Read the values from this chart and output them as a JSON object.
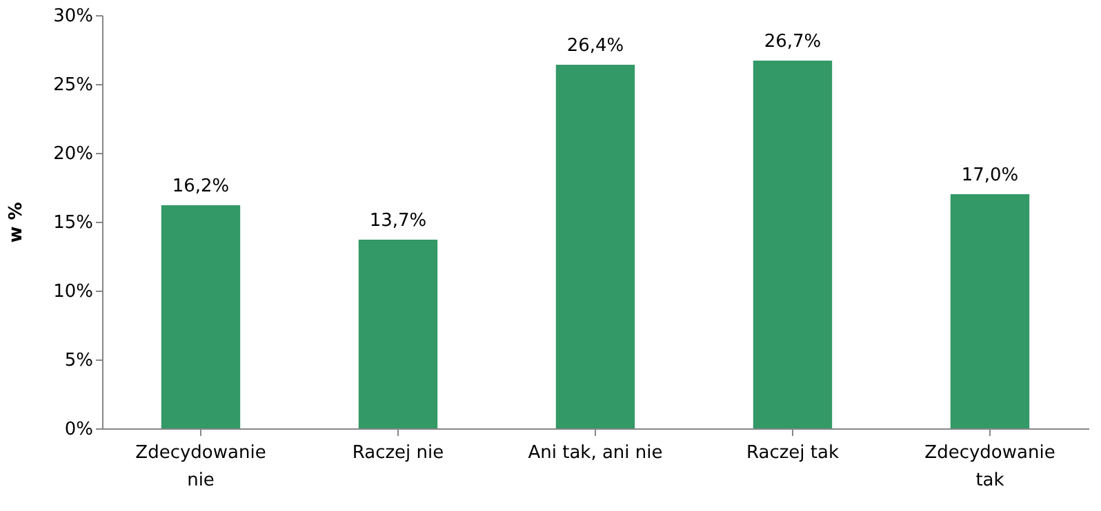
{
  "chart_data": {
    "type": "bar",
    "ylabel": "w %",
    "categories": [
      "Zdecydowanie nie",
      "Raczej nie",
      "Ani tak, ani nie",
      "Raczej tak",
      "Zdecydowanie tak"
    ],
    "values": [
      16.2,
      13.7,
      26.4,
      26.7,
      17.0
    ],
    "value_labels": [
      "16,2%",
      "13,7%",
      "26,4%",
      "26,7%",
      "17,0%"
    ],
    "color": "#339966",
    "ylim": [
      0,
      30
    ],
    "yticks": [
      {
        "value": 0,
        "label": "0%"
      },
      {
        "value": 5,
        "label": "5%"
      },
      {
        "value": 10,
        "label": "10%"
      },
      {
        "value": 15,
        "label": "15%"
      },
      {
        "value": 20,
        "label": "20%"
      },
      {
        "value": 25,
        "label": "25%"
      },
      {
        "value": 30,
        "label": "30%"
      }
    ],
    "grid": false
  }
}
